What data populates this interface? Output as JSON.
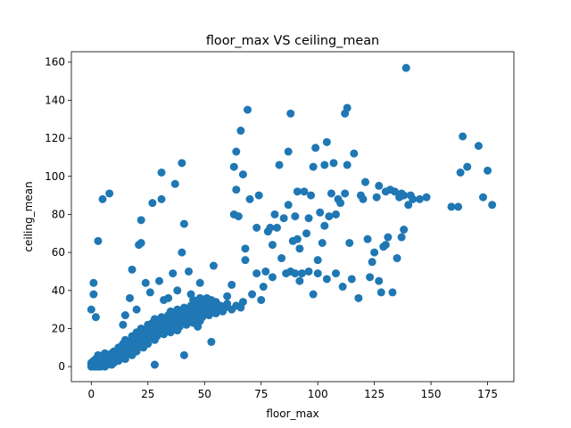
{
  "chart_data": {
    "type": "scatter",
    "title": "floor_max VS ceiling_mean",
    "xlabel": "floor_max",
    "ylabel": "ceiling_mean",
    "xlim": [
      -8.8,
      186.6
    ],
    "ylim": [
      -7.9,
      165.5
    ],
    "xticks": [
      0,
      25,
      50,
      75,
      100,
      125,
      150,
      175
    ],
    "yticks": [
      0,
      20,
      40,
      60,
      80,
      100,
      120,
      140,
      160
    ],
    "grid": false,
    "marker_color": "#1f77b4",
    "points": [
      [
        0,
        0
      ],
      [
        0,
        1
      ],
      [
        0,
        2
      ],
      [
        1,
        0
      ],
      [
        1,
        1
      ],
      [
        1,
        3
      ],
      [
        2,
        0
      ],
      [
        2,
        1
      ],
      [
        2,
        2
      ],
      [
        2,
        4
      ],
      [
        3,
        0
      ],
      [
        3,
        1
      ],
      [
        3,
        3
      ],
      [
        3,
        6
      ],
      [
        4,
        0
      ],
      [
        4,
        2
      ],
      [
        4,
        4
      ],
      [
        5,
        1
      ],
      [
        5,
        3
      ],
      [
        5,
        5
      ],
      [
        6,
        0
      ],
      [
        6,
        2
      ],
      [
        6,
        7
      ],
      [
        7,
        1
      ],
      [
        7,
        4
      ],
      [
        7,
        6
      ],
      [
        8,
        2
      ],
      [
        8,
        5
      ],
      [
        9,
        1
      ],
      [
        9,
        3
      ],
      [
        9,
        7
      ],
      [
        10,
        2
      ],
      [
        10,
        5
      ],
      [
        10,
        8
      ],
      [
        11,
        4
      ],
      [
        11,
        6
      ],
      [
        12,
        3
      ],
      [
        12,
        7
      ],
      [
        12,
        10
      ],
      [
        13,
        5
      ],
      [
        13,
        9
      ],
      [
        14,
        6
      ],
      [
        14,
        8
      ],
      [
        14,
        12
      ],
      [
        15,
        4
      ],
      [
        15,
        10
      ],
      [
        15,
        14
      ],
      [
        16,
        7
      ],
      [
        16,
        11
      ],
      [
        17,
        9
      ],
      [
        17,
        13
      ],
      [
        18,
        6
      ],
      [
        18,
        12
      ],
      [
        18,
        16
      ],
      [
        19,
        10
      ],
      [
        19,
        15
      ],
      [
        20,
        8
      ],
      [
        20,
        14
      ],
      [
        20,
        18
      ],
      [
        21,
        11
      ],
      [
        21,
        17
      ],
      [
        22,
        13
      ],
      [
        22,
        20
      ],
      [
        23,
        10
      ],
      [
        23,
        16
      ],
      [
        24,
        14
      ],
      [
        24,
        19
      ],
      [
        25,
        12
      ],
      [
        25,
        18
      ],
      [
        25,
        22
      ],
      [
        26,
        15
      ],
      [
        26,
        20
      ],
      [
        27,
        17
      ],
      [
        27,
        23
      ],
      [
        28,
        14
      ],
      [
        28,
        19
      ],
      [
        28,
        25
      ],
      [
        29,
        16
      ],
      [
        29,
        21
      ],
      [
        30,
        18
      ],
      [
        30,
        24
      ],
      [
        31,
        20
      ],
      [
        31,
        26
      ],
      [
        32,
        17
      ],
      [
        32,
        22
      ],
      [
        33,
        19
      ],
      [
        33,
        25
      ],
      [
        34,
        21
      ],
      [
        34,
        27
      ],
      [
        35,
        18
      ],
      [
        35,
        23
      ],
      [
        35,
        29
      ],
      [
        36,
        20
      ],
      [
        36,
        26
      ],
      [
        37,
        22
      ],
      [
        37,
        28
      ],
      [
        38,
        19
      ],
      [
        38,
        24
      ],
      [
        38,
        30
      ],
      [
        39,
        21
      ],
      [
        39,
        27
      ],
      [
        40,
        23
      ],
      [
        40,
        29
      ],
      [
        41,
        25
      ],
      [
        41,
        31
      ],
      [
        42,
        22
      ],
      [
        42,
        28
      ],
      [
        43,
        24
      ],
      [
        43,
        30
      ],
      [
        44,
        26
      ],
      [
        44,
        32
      ],
      [
        45,
        23
      ],
      [
        45,
        29
      ],
      [
        45,
        35
      ],
      [
        46,
        25
      ],
      [
        46,
        31
      ],
      [
        47,
        27
      ],
      [
        47,
        33
      ],
      [
        48,
        24
      ],
      [
        48,
        30
      ],
      [
        48,
        36
      ],
      [
        49,
        26
      ],
      [
        49,
        32
      ],
      [
        50,
        28
      ],
      [
        50,
        34
      ],
      [
        51,
        30
      ],
      [
        51,
        36
      ],
      [
        52,
        27
      ],
      [
        52,
        33
      ],
      [
        53,
        29
      ],
      [
        53,
        35
      ],
      [
        54,
        31
      ],
      [
        55,
        28
      ],
      [
        55,
        34
      ],
      [
        56,
        30
      ],
      [
        57,
        32
      ],
      [
        58,
        29
      ],
      [
        59,
        31
      ],
      [
        60,
        33
      ],
      [
        62,
        30
      ],
      [
        64,
        32
      ],
      [
        66,
        31
      ],
      [
        0,
        30
      ],
      [
        1,
        38
      ],
      [
        1,
        44
      ],
      [
        2,
        26
      ],
      [
        3,
        66
      ],
      [
        5,
        88
      ],
      [
        8,
        91
      ],
      [
        14,
        22
      ],
      [
        15,
        27
      ],
      [
        17,
        36
      ],
      [
        18,
        51
      ],
      [
        20,
        30
      ],
      [
        21,
        64
      ],
      [
        22,
        65
      ],
      [
        22,
        77
      ],
      [
        24,
        44
      ],
      [
        26,
        39
      ],
      [
        27,
        86
      ],
      [
        28,
        1
      ],
      [
        30,
        45
      ],
      [
        31,
        88
      ],
      [
        31,
        102
      ],
      [
        32,
        35
      ],
      [
        34,
        36
      ],
      [
        36,
        49
      ],
      [
        37,
        96
      ],
      [
        38,
        40
      ],
      [
        40,
        60
      ],
      [
        40,
        107
      ],
      [
        41,
        75
      ],
      [
        41,
        6
      ],
      [
        43,
        50
      ],
      [
        44,
        38
      ],
      [
        47,
        21
      ],
      [
        48,
        44
      ],
      [
        53,
        13
      ],
      [
        54,
        53
      ],
      [
        60,
        37
      ],
      [
        62,
        43
      ],
      [
        63,
        80
      ],
      [
        63,
        105
      ],
      [
        64,
        93
      ],
      [
        64,
        113
      ],
      [
        65,
        79
      ],
      [
        66,
        124
      ],
      [
        67,
        101
      ],
      [
        67,
        34
      ],
      [
        68,
        56
      ],
      [
        68,
        62
      ],
      [
        69,
        135
      ],
      [
        70,
        88
      ],
      [
        71,
        38
      ],
      [
        73,
        49
      ],
      [
        73,
        73
      ],
      [
        74,
        90
      ],
      [
        75,
        35
      ],
      [
        76,
        42
      ],
      [
        77,
        50
      ],
      [
        78,
        71
      ],
      [
        79,
        73
      ],
      [
        80,
        64
      ],
      [
        80,
        47
      ],
      [
        81,
        80
      ],
      [
        82,
        73
      ],
      [
        83,
        106
      ],
      [
        84,
        57
      ],
      [
        85,
        78
      ],
      [
        86,
        49
      ],
      [
        87,
        85
      ],
      [
        87,
        113
      ],
      [
        88,
        133
      ],
      [
        88,
        50
      ],
      [
        89,
        66
      ],
      [
        90,
        49
      ],
      [
        90,
        79
      ],
      [
        91,
        67
      ],
      [
        91,
        92
      ],
      [
        92,
        62
      ],
      [
        92,
        45
      ],
      [
        93,
        49
      ],
      [
        94,
        92
      ],
      [
        95,
        70
      ],
      [
        96,
        50
      ],
      [
        96,
        78
      ],
      [
        97,
        90
      ],
      [
        98,
        105
      ],
      [
        98,
        38
      ],
      [
        99,
        115
      ],
      [
        100,
        49
      ],
      [
        100,
        56
      ],
      [
        101,
        81
      ],
      [
        102,
        65
      ],
      [
        103,
        74
      ],
      [
        103,
        106
      ],
      [
        104,
        118
      ],
      [
        104,
        46
      ],
      [
        105,
        79
      ],
      [
        106,
        91
      ],
      [
        107,
        107
      ],
      [
        108,
        80
      ],
      [
        108,
        49
      ],
      [
        109,
        88
      ],
      [
        110,
        86
      ],
      [
        111,
        42
      ],
      [
        112,
        91
      ],
      [
        112,
        133
      ],
      [
        113,
        106
      ],
      [
        113,
        136
      ],
      [
        114,
        65
      ],
      [
        115,
        46
      ],
      [
        116,
        112
      ],
      [
        118,
        36
      ],
      [
        119,
        90
      ],
      [
        120,
        88
      ],
      [
        121,
        97
      ],
      [
        122,
        67
      ],
      [
        123,
        47
      ],
      [
        124,
        55
      ],
      [
        125,
        60
      ],
      [
        126,
        89
      ],
      [
        127,
        45
      ],
      [
        127,
        95
      ],
      [
        128,
        39
      ],
      [
        129,
        63
      ],
      [
        130,
        64
      ],
      [
        130,
        92
      ],
      [
        131,
        68
      ],
      [
        132,
        93
      ],
      [
        133,
        39
      ],
      [
        134,
        92
      ],
      [
        135,
        57
      ],
      [
        136,
        89
      ],
      [
        137,
        91
      ],
      [
        137,
        68
      ],
      [
        138,
        90
      ],
      [
        138,
        72
      ],
      [
        139,
        157
      ],
      [
        140,
        85
      ],
      [
        141,
        90
      ],
      [
        142,
        88
      ],
      [
        145,
        88
      ],
      [
        148,
        89
      ],
      [
        159,
        84
      ],
      [
        162,
        84
      ],
      [
        163,
        102
      ],
      [
        164,
        121
      ],
      [
        166,
        105
      ],
      [
        171,
        116
      ],
      [
        173,
        89
      ],
      [
        175,
        103
      ],
      [
        177,
        85
      ]
    ]
  }
}
